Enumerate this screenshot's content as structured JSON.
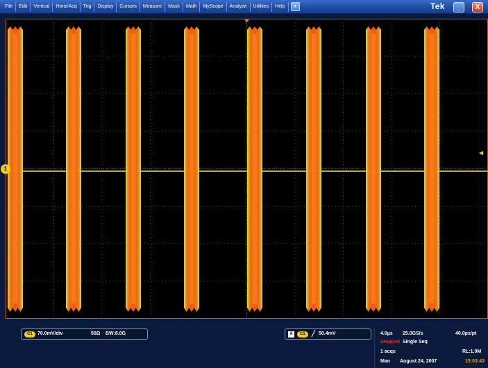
{
  "menubar": {
    "items": [
      "File",
      "Edit",
      "Vertical",
      "Horiz/Acq",
      "Trig",
      "Display",
      "Cursors",
      "Measure",
      "Mask",
      "Math",
      "MyScope",
      "Analyze",
      "Utilities",
      "Help"
    ],
    "dropdown_icon": "chevron-down-icon",
    "brand": "Tek",
    "minimize_icon": "minimize-icon",
    "close_icon": "close-icon",
    "minimize_label": "_",
    "close_label": "X"
  },
  "waveform": {
    "channel_label": "1",
    "trace_color": "#f07a1e",
    "trace_core_color": "#ff5a10",
    "edge_color": "#d8f020",
    "baseline_color": "#9ad82a",
    "burst_count": 8
  },
  "channel_readout": {
    "channel": "C1",
    "scale": "70.0mV/div",
    "impedance": "50Ω",
    "bandwidth": "BW:8.0G"
  },
  "trigger_readout": {
    "source_tag": "A",
    "channel": "C1",
    "slope_symbol": "╱",
    "level": "50.4mV"
  },
  "acquisition": {
    "timebase": "4.0µs",
    "sample_rate": "25.0GS/s",
    "resolution": "40.0ps/pt",
    "state": "Stopped",
    "mode": "Single Seq",
    "acqs": "1 acqs",
    "record_length": "RL:1.0M",
    "user": "Man",
    "date": "August 24, 2007",
    "time": "15:03:43"
  },
  "colors": {
    "menubar": "#1e4aa2",
    "channel1": "#f2cd1a",
    "stopped": "#e42b24"
  }
}
